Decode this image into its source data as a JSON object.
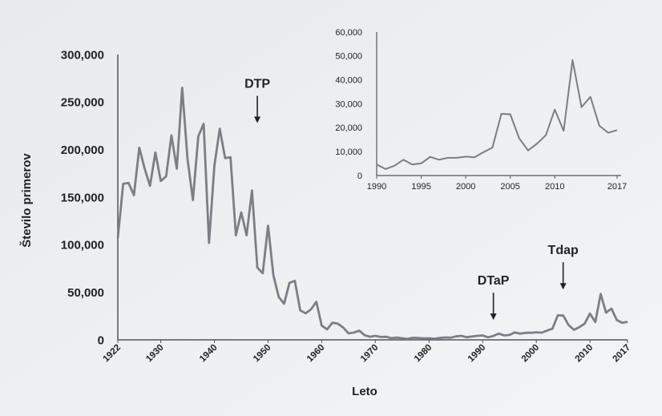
{
  "chart_data": [
    {
      "type": "line",
      "xlabel": "Leto",
      "ylabel": "Število primerov",
      "xlim": [
        1922,
        2017
      ],
      "ylim": [
        0,
        300000
      ],
      "x_ticks": [
        1922,
        1930,
        1940,
        1950,
        1960,
        1970,
        1980,
        1990,
        2000,
        2010,
        2017
      ],
      "y_ticks": [
        0,
        50000,
        100000,
        150000,
        200000,
        250000,
        300000
      ],
      "y_tick_labels": [
        "0",
        "50,000",
        "100,000",
        "150,000",
        "200,000",
        "250,000",
        "300,000"
      ],
      "grid": false,
      "series": [
        {
          "color": "#7b7e84",
          "x": [
            1922,
            1923,
            1924,
            1925,
            1926,
            1927,
            1928,
            1929,
            1930,
            1931,
            1932,
            1933,
            1934,
            1935,
            1936,
            1937,
            1938,
            1939,
            1940,
            1941,
            1942,
            1943,
            1944,
            1945,
            1946,
            1947,
            1948,
            1949,
            1950,
            1951,
            1952,
            1953,
            1954,
            1955,
            1956,
            1957,
            1958,
            1959,
            1960,
            1961,
            1962,
            1963,
            1964,
            1965,
            1966,
            1967,
            1968,
            1969,
            1970,
            1971,
            1972,
            1973,
            1974,
            1975,
            1976,
            1977,
            1978,
            1979,
            1980,
            1981,
            1982,
            1983,
            1984,
            1985,
            1986,
            1987,
            1988,
            1989,
            1990,
            1991,
            1992,
            1993,
            1994,
            1995,
            1996,
            1997,
            1998,
            1999,
            2000,
            2001,
            2002,
            2003,
            2004,
            2005,
            2006,
            2007,
            2008,
            2009,
            2010,
            2011,
            2012,
            2013,
            2014,
            2015,
            2016,
            2017
          ],
          "values": [
            107000,
            164000,
            165000,
            152000,
            202000,
            180000,
            162000,
            197000,
            167000,
            172000,
            215000,
            180000,
            265000,
            190000,
            147000,
            214000,
            227000,
            102000,
            183000,
            222000,
            191000,
            192000,
            110000,
            134000,
            110000,
            157000,
            76000,
            70000,
            120000,
            68000,
            45000,
            38000,
            60000,
            62000,
            31000,
            28000,
            32000,
            40000,
            15000,
            11000,
            18000,
            17000,
            13000,
            6800,
            7700,
            9700,
            4800,
            3300,
            4200,
            3000,
            3300,
            1800,
            2400,
            1700,
            1000,
            2200,
            2000,
            1600,
            1700,
            1200,
            1900,
            2500,
            2300,
            3600,
            4200,
            2800,
            3500,
            4200,
            4600,
            2700,
            4100,
            6600,
            4600,
            5100,
            7800,
            6600,
            7400,
            7400,
            7900,
            7600,
            9800,
            11700,
            25800,
            25600,
            15600,
            10500,
            13300,
            16900,
            27600,
            18700,
            48300,
            28600,
            32900,
            20800,
            17900,
            19000
          ]
        }
      ],
      "annotations": [
        {
          "text": "DTP",
          "x": 1948,
          "y": 265000
        },
        {
          "text": "DTaP",
          "x": 1992,
          "y": 58000
        },
        {
          "text": "Tdap",
          "x": 2005,
          "y": 90000
        }
      ]
    },
    {
      "type": "line",
      "inset": true,
      "xlim": [
        1990,
        2017
      ],
      "ylim": [
        0,
        60000
      ],
      "x_ticks": [
        1990,
        1995,
        2000,
        2005,
        2010,
        2017
      ],
      "y_ticks": [
        0,
        10000,
        20000,
        30000,
        40000,
        50000,
        60000
      ],
      "y_tick_labels": [
        "0",
        "10,000",
        "20,000",
        "30,000",
        "40,000",
        "50,000",
        "60,000"
      ],
      "grid": false,
      "series": [
        {
          "color": "#7b7e84",
          "x": [
            1990,
            1991,
            1992,
            1993,
            1994,
            1995,
            1996,
            1997,
            1998,
            1999,
            2000,
            2001,
            2002,
            2003,
            2004,
            2005,
            2006,
            2007,
            2008,
            2009,
            2010,
            2011,
            2012,
            2013,
            2014,
            2015,
            2016,
            2017
          ],
          "values": [
            4600,
            2700,
            4100,
            6600,
            4600,
            5100,
            7800,
            6600,
            7400,
            7400,
            7900,
            7600,
            9800,
            11700,
            25800,
            25600,
            15600,
            10500,
            13300,
            16900,
            27600,
            18700,
            48300,
            28600,
            32900,
            20800,
            17900,
            19000
          ]
        }
      ]
    }
  ]
}
